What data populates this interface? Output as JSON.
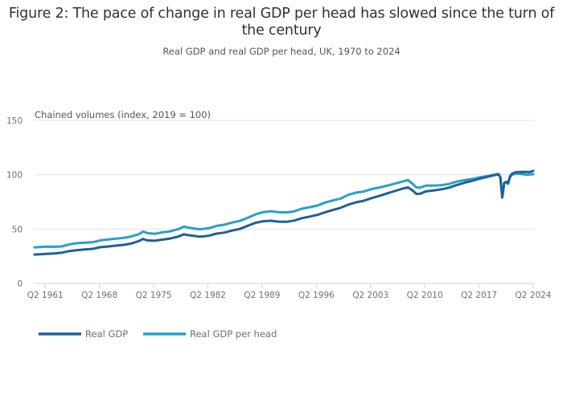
{
  "chart_data": {
    "type": "line",
    "title": "Figure 2: The pace of change in real GDP per head has slowed since the turn of the century",
    "subtitle": "Real GDP and real GDP per head, UK, 1970 to 2024",
    "ylabel": "Chained volumes (index, 2019 = 100)",
    "xlabel": "",
    "ylim": [
      0,
      150
    ],
    "xlim": [
      1960.0,
      2024.375
    ],
    "yticks": [
      0,
      50,
      100,
      150
    ],
    "ytick_labels": [
      "0",
      "50",
      "100",
      "150"
    ],
    "xticks": [
      1961.375,
      1968.375,
      1975.375,
      1982.375,
      1989.375,
      1996.375,
      2003.375,
      2010.375,
      2017.375,
      2024.375
    ],
    "xtick_labels": [
      "Q2 1961",
      "Q2 1968",
      "Q2 1975",
      "Q2 1982",
      "Q2 1989",
      "Q2 1996",
      "Q2 2003",
      "Q2 2010",
      "Q2 2017",
      "Q2 2024"
    ],
    "grid": true,
    "legend_position": "bottom-left",
    "series": [
      {
        "name": "Real GDP",
        "color": "#206095",
        "x": [
          1960.0,
          1961.5,
          1962.5,
          1963.5,
          1964.5,
          1965.5,
          1966.5,
          1967.5,
          1968.5,
          1969.5,
          1970.5,
          1971.5,
          1972.5,
          1973.5,
          1974.0,
          1974.5,
          1975.5,
          1976.5,
          1977.5,
          1978.5,
          1979.3,
          1979.6,
          1980.5,
          1981.3,
          1982.5,
          1983.5,
          1984.5,
          1985.5,
          1986.5,
          1987.5,
          1988.5,
          1989.5,
          1990.5,
          1991.5,
          1992.5,
          1993.5,
          1994.5,
          1995.5,
          1996.5,
          1997.5,
          1998.5,
          1999.5,
          2000.5,
          2001.5,
          2002.5,
          2003.5,
          2004.5,
          2005.5,
          2006.5,
          2007.5,
          2008.2,
          2008.8,
          2009.3,
          2009.8,
          2010.5,
          2011.5,
          2012.5,
          2013.5,
          2014.5,
          2015.5,
          2016.5,
          2017.5,
          2018.5,
          2019.5,
          2019.9,
          2020.125,
          2020.375,
          2020.625,
          2020.875,
          2021.125,
          2021.375,
          2021.625,
          2022.0,
          2022.5,
          2023.0,
          2023.5,
          2024.0,
          2024.375
        ],
        "values": [
          26.5,
          27.2,
          27.5,
          28.2,
          29.8,
          30.6,
          31.2,
          31.8,
          33.3,
          34.0,
          34.7,
          35.5,
          36.7,
          39.0,
          40.9,
          39.6,
          39.2,
          40.3,
          41.3,
          43.0,
          45.2,
          44.6,
          43.8,
          42.9,
          43.9,
          45.8,
          46.8,
          48.6,
          50.1,
          53.0,
          55.7,
          57.2,
          57.6,
          56.8,
          56.7,
          57.8,
          60.0,
          61.5,
          63.0,
          65.5,
          67.5,
          69.5,
          72.5,
          74.6,
          76.0,
          78.5,
          80.5,
          82.8,
          85.0,
          87.2,
          88.4,
          85.5,
          82.3,
          82.5,
          84.7,
          85.6,
          86.6,
          88.1,
          90.6,
          92.6,
          94.4,
          96.5,
          98.1,
          99.8,
          100.4,
          97.6,
          79.0,
          92.5,
          93.5,
          92.2,
          98.5,
          100.8,
          102.1,
          102.5,
          102.6,
          102.5,
          102.6,
          103.6
        ]
      },
      {
        "name": "Real GDP per head",
        "color": "#27a0cc",
        "x": [
          1960.0,
          1961.5,
          1962.5,
          1963.5,
          1964.5,
          1965.5,
          1966.5,
          1967.5,
          1968.5,
          1969.5,
          1970.5,
          1971.5,
          1972.5,
          1973.5,
          1974.0,
          1974.5,
          1975.5,
          1976.5,
          1977.5,
          1978.5,
          1979.3,
          1979.6,
          1980.5,
          1981.3,
          1982.5,
          1983.5,
          1984.5,
          1985.5,
          1986.5,
          1987.5,
          1988.5,
          1989.5,
          1990.5,
          1991.5,
          1992.5,
          1993.5,
          1994.5,
          1995.5,
          1996.5,
          1997.5,
          1998.5,
          1999.5,
          2000.5,
          2001.5,
          2002.5,
          2003.5,
          2004.5,
          2005.5,
          2006.5,
          2007.5,
          2008.2,
          2008.8,
          2009.3,
          2009.8,
          2010.5,
          2011.5,
          2012.5,
          2013.5,
          2014.5,
          2015.5,
          2016.5,
          2017.5,
          2018.5,
          2019.5,
          2019.9,
          2020.125,
          2020.375,
          2020.625,
          2020.875,
          2021.125,
          2021.375,
          2021.625,
          2022.0,
          2022.5,
          2023.0,
          2023.5,
          2024.0,
          2024.375
        ],
        "values": [
          33.2,
          33.8,
          33.7,
          34.0,
          36.0,
          37.0,
          37.5,
          37.9,
          39.6,
          40.5,
          41.2,
          41.8,
          43.2,
          45.4,
          47.7,
          46.4,
          45.6,
          47.0,
          47.9,
          49.8,
          52.3,
          51.6,
          50.6,
          49.8,
          50.8,
          52.9,
          54.0,
          56.0,
          57.5,
          60.3,
          63.5,
          65.6,
          66.4,
          65.5,
          65.3,
          66.3,
          68.7,
          70.1,
          71.6,
          74.4,
          76.3,
          78.0,
          81.5,
          83.6,
          84.5,
          86.8,
          88.2,
          89.9,
          91.8,
          93.8,
          95.1,
          91.7,
          88.3,
          88.2,
          89.9,
          90.1,
          90.4,
          91.5,
          93.7,
          95.0,
          96.2,
          97.6,
          98.8,
          100.2,
          100.6,
          97.8,
          79.2,
          92.3,
          93.2,
          91.6,
          97.8,
          99.9,
          100.8,
          100.9,
          100.5,
          99.9,
          100.3,
          100.5
        ]
      }
    ]
  }
}
